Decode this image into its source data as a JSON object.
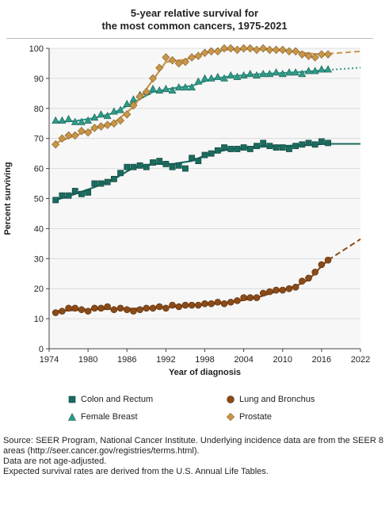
{
  "chart_data": {
    "type": "line",
    "title_line1": "5-year relative survival for",
    "title_line2": "the most common cancers, 1975-2021",
    "xlabel": "Year of diagnosis",
    "ylabel": "Percent surviving",
    "xlim": [
      1974,
      2022
    ],
    "ylim": [
      0,
      100
    ],
    "xticks": [
      1974,
      1980,
      1986,
      1992,
      1998,
      2004,
      2010,
      2016,
      2022
    ],
    "yticks": [
      0,
      10,
      20,
      30,
      40,
      50,
      60,
      70,
      80,
      90,
      100
    ],
    "grid": "horizontal",
    "series": [
      {
        "name": "Colon and Rectum",
        "color": "#1a6b5e",
        "marker": "square",
        "x": [
          1975,
          1976,
          1977,
          1978,
          1979,
          1980,
          1981,
          1982,
          1983,
          1984,
          1985,
          1986,
          1987,
          1988,
          1989,
          1990,
          1991,
          1992,
          1993,
          1994,
          1995,
          1996,
          1997,
          1998,
          1999,
          2000,
          2001,
          2002,
          2003,
          2004,
          2005,
          2006,
          2007,
          2008,
          2009,
          2010,
          2011,
          2012,
          2013,
          2014,
          2015,
          2016,
          2017
        ],
        "values": [
          49.5,
          51,
          51,
          52.5,
          51.5,
          52,
          55,
          55,
          55.5,
          56.5,
          58.5,
          60.5,
          60.5,
          61,
          60.5,
          62,
          62.5,
          61.5,
          60.5,
          61,
          60,
          63.5,
          62.5,
          64.5,
          65,
          66,
          67,
          66.5,
          66.5,
          67,
          66.5,
          67.5,
          68.5,
          67.5,
          67,
          67,
          66.5,
          67.5,
          68,
          68.5,
          68,
          69,
          68.5
        ],
        "trend_x": [
          1975,
          1978,
          1981,
          1984,
          1987,
          1990,
          1993,
          1996,
          1999,
          2002,
          2005,
          2008,
          2011,
          2014,
          2017
        ],
        "trend_y": [
          49.5,
          51.5,
          53.8,
          56.5,
          60.3,
          61.5,
          61.5,
          62.5,
          65.2,
          66.5,
          67.0,
          67.4,
          67.6,
          67.9,
          68.2
        ],
        "projection_x": [
          2017,
          2022
        ],
        "projection_y": [
          68.2,
          68.2
        ],
        "projection_style": "solid"
      },
      {
        "name": "Lung and Bronchus",
        "color": "#8b4a16",
        "marker": "circle",
        "x": [
          1975,
          1976,
          1977,
          1978,
          1979,
          1980,
          1981,
          1982,
          1983,
          1984,
          1985,
          1986,
          1987,
          1988,
          1989,
          1990,
          1991,
          1992,
          1993,
          1994,
          1995,
          1996,
          1997,
          1998,
          1999,
          2000,
          2001,
          2002,
          2003,
          2004,
          2005,
          2006,
          2007,
          2008,
          2009,
          2010,
          2011,
          2012,
          2013,
          2014,
          2015,
          2016,
          2017
        ],
        "values": [
          12,
          12.5,
          13.5,
          13.5,
          13,
          12.5,
          13.5,
          13.5,
          14,
          13,
          13.5,
          13,
          12.5,
          13,
          13.5,
          13.5,
          14,
          13.5,
          14.5,
          14,
          14.5,
          14.5,
          14.5,
          15,
          15,
          15.5,
          15,
          15.5,
          16,
          17,
          17,
          17,
          18.5,
          19,
          19.5,
          19.5,
          20,
          20.5,
          22.5,
          23.5,
          25.5,
          28,
          29.5
        ],
        "trend_x": [
          1975,
          1980,
          1985,
          1990,
          1995,
          2000,
          2003,
          2006,
          2009,
          2012,
          2014,
          2016,
          2017
        ],
        "trend_y": [
          12.5,
          13.1,
          13.3,
          13.5,
          14.2,
          15.0,
          15.8,
          17.0,
          19.0,
          20.8,
          23.0,
          27.5,
          29.5
        ],
        "projection_x": [
          2017,
          2022
        ],
        "projection_y": [
          29.5,
          36.5
        ],
        "projection_style": "dashed"
      },
      {
        "name": "Female Breast",
        "color": "#2e9a88",
        "marker": "triangle",
        "x": [
          1975,
          1976,
          1977,
          1978,
          1979,
          1980,
          1981,
          1982,
          1983,
          1984,
          1985,
          1986,
          1987,
          1988,
          1989,
          1990,
          1991,
          1992,
          1993,
          1994,
          1995,
          1996,
          1997,
          1998,
          1999,
          2000,
          2001,
          2002,
          2003,
          2004,
          2005,
          2006,
          2007,
          2008,
          2009,
          2010,
          2011,
          2012,
          2013,
          2014,
          2015,
          2016,
          2017
        ],
        "values": [
          76,
          76,
          76.5,
          75.5,
          75.5,
          76,
          77,
          78,
          77.5,
          79,
          79.5,
          81.5,
          83,
          84.5,
          85.5,
          86.5,
          86,
          86.5,
          86,
          87,
          87,
          87,
          89,
          90,
          90,
          90.5,
          90,
          91,
          90.5,
          91,
          91.5,
          91,
          91.5,
          91.5,
          92,
          91.5,
          92,
          92,
          91.5,
          92.5,
          92.5,
          93,
          93
        ],
        "trend_x": [
          1975,
          1978,
          1981,
          1984,
          1987,
          1990,
          1993,
          1996,
          1999,
          2002,
          2005,
          2008,
          2011,
          2014,
          2017
        ],
        "trend_y": [
          75.5,
          75.8,
          76.8,
          78.5,
          82.0,
          85.5,
          86.7,
          87.5,
          89.8,
          90.7,
          91.2,
          91.6,
          91.9,
          92.3,
          92.8
        ],
        "projection_x": [
          2017,
          2022
        ],
        "projection_y": [
          92.8,
          93.6
        ],
        "projection_style": "dotted"
      },
      {
        "name": "Prostate",
        "color": "#c99546",
        "marker": "diamond",
        "x": [
          1975,
          1976,
          1977,
          1978,
          1979,
          1980,
          1981,
          1982,
          1983,
          1984,
          1985,
          1986,
          1987,
          1988,
          1989,
          1990,
          1991,
          1992,
          1993,
          1994,
          1995,
          1996,
          1997,
          1998,
          1999,
          2000,
          2001,
          2002,
          2003,
          2004,
          2005,
          2006,
          2007,
          2008,
          2009,
          2010,
          2011,
          2012,
          2013,
          2014,
          2015,
          2016,
          2017
        ],
        "values": [
          68,
          70,
          71,
          71,
          72.5,
          72,
          73.5,
          74,
          74.5,
          75,
          76,
          78,
          81,
          84,
          85.5,
          90,
          93.5,
          97,
          96,
          95,
          95.5,
          97,
          97.5,
          98.5,
          99,
          99,
          100,
          100,
          99.5,
          100,
          100,
          99.5,
          100,
          99.5,
          99.5,
          99.5,
          99,
          99,
          98,
          97.5,
          97,
          98,
          98
        ],
        "trend_x": [
          1975,
          1978,
          1981,
          1984,
          1987,
          1990,
          1992,
          1995,
          1998,
          2001,
          2004,
          2007,
          2010,
          2013,
          2015,
          2017
        ],
        "trend_y": [
          68.5,
          71.0,
          73.2,
          75.2,
          80.5,
          89.5,
          95.5,
          96.2,
          98.5,
          99.5,
          99.8,
          99.7,
          99.3,
          98.6,
          98.1,
          98.2
        ],
        "projection_x": [
          2017,
          2022
        ],
        "projection_y": [
          98.2,
          99.0
        ],
        "projection_style": "dashed"
      }
    ]
  },
  "source": {
    "line1": "Source: SEER Program, National Cancer Institute. Underlying incidence data are from the SEER 8 areas (http://seer.cancer.gov/registries/terms.html).",
    "line2": "Data are not age-adjusted.",
    "line3": "Expected survival rates are derived from the U.S. Annual Life Tables."
  }
}
